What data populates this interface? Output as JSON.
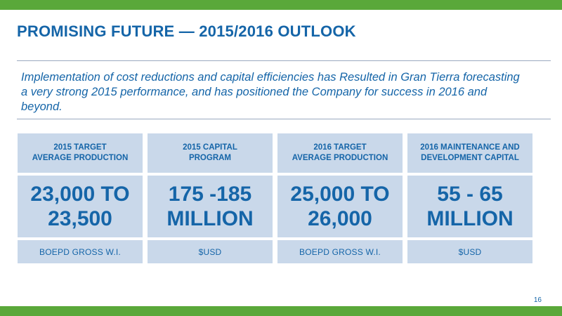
{
  "slide": {
    "title": "PROMISING FUTURE — 2015/2016 OUTLOOK",
    "intro": "Implementation of cost reductions and capital efficiencies has Resulted in Gran Tierra forecasting a very strong 2015 performance, and has positioned the Company for success in 2016 and beyond.",
    "page_number": "16"
  },
  "cards": [
    {
      "heading": "2015 TARGET\nAVERAGE PRODUCTION",
      "value": "23,000 TO\n23,500",
      "unit": "BOEPD GROSS W.I."
    },
    {
      "heading": "2015 CAPITAL\nPROGRAM",
      "value": "175 -185\nMILLION",
      "unit": "$USD"
    },
    {
      "heading": "2016 TARGET\nAVERAGE PRODUCTION",
      "value": "25,000 TO\n26,000",
      "unit": "BOEPD GROSS W.I."
    },
    {
      "heading": "2016 MAINTENANCE AND\nDEVELOPMENT CAPITAL",
      "value": "55 - 65\nMILLION",
      "unit": "$USD"
    }
  ],
  "colors": {
    "accent_green": "#5aa83a",
    "title_blue": "#1565a8",
    "card_background": "#c9d8ea"
  }
}
